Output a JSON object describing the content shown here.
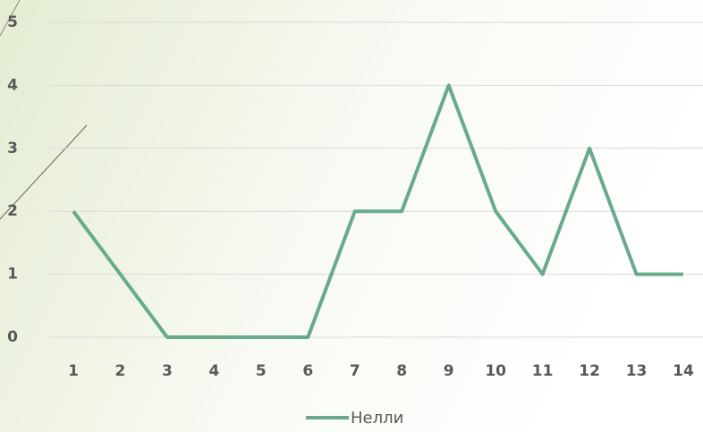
{
  "chart_data": {
    "type": "line",
    "categories": [
      1,
      2,
      3,
      4,
      5,
      6,
      7,
      8,
      9,
      10,
      11,
      12,
      13,
      14
    ],
    "series": [
      {
        "name": "Нелли",
        "color": "#68aa8c",
        "values": [
          2,
          1,
          0,
          0,
          0,
          0,
          2,
          2,
          4,
          2,
          1,
          3,
          1,
          1
        ]
      }
    ],
    "ylim": [
      0,
      5
    ],
    "yticks": [
      0,
      1,
      2,
      3,
      4,
      5
    ],
    "grid": true,
    "legend": "bottom"
  }
}
